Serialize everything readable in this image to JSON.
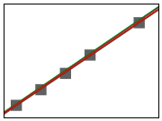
{
  "chart_data": {
    "type": "scatter",
    "series": [
      {
        "type": "scatter",
        "color": "#606060",
        "marker": "square",
        "x": [
          1.0,
          2.0,
          3.0,
          4.0,
          6.0
        ],
        "values": [
          53.5,
          101.6,
          151.8,
          208.2,
          307.5
        ]
      },
      {
        "type": "line",
        "color": "#1a6b3a",
        "line_style": "solid",
        "x": [
          0.5,
          6.8
        ],
        "values": [
          31.75,
          356.2
        ]
      },
      {
        "type": "line",
        "color": "#cc1100",
        "line_style": "solid",
        "x": [
          0.5,
          6.8
        ],
        "values": [
          27.5,
          348.8
        ]
      }
    ],
    "xlim": [
      0.5,
      6.8
    ],
    "ylim": [
      15,
      365
    ],
    "grid": false,
    "tick_labels": false
  }
}
